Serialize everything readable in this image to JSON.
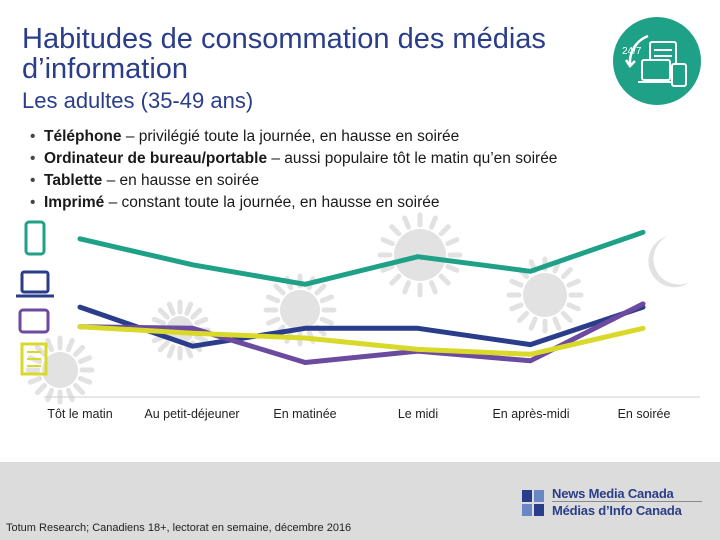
{
  "header": {
    "title": "Habitudes de consommation des médias d’information",
    "subtitle": "Les adultes (35-49 ans)",
    "badge_text": "24/7"
  },
  "bullets": [
    {
      "bold": "Téléphone",
      "rest": " – privilégié toute la journée, en hausse en soirée"
    },
    {
      "bold": "Ordinateur de bureau/portable",
      "rest": " – aussi populaire tôt le matin qu’en soirée"
    },
    {
      "bold": "Tablette",
      "rest": " – en hausse en soirée"
    },
    {
      "bold": "Imprimé",
      "rest": " – constant toute la journée, en hausse en soirée"
    }
  ],
  "chart_data": {
    "type": "line",
    "categories": [
      "Tôt le matin",
      "Au petit-déjeuner",
      "En matinée",
      "Le midi",
      "En après-midi",
      "En soirée"
    ],
    "series": [
      {
        "icon": "phone-icon",
        "color": "#1fa187",
        "values": [
          96,
          80,
          68,
          85,
          76,
          100
        ]
      },
      {
        "icon": "laptop-icon",
        "color": "#2a3d8a",
        "values": [
          54,
          30,
          41,
          41,
          31,
          54
        ]
      },
      {
        "icon": "tablet-icon",
        "color": "#6b4aa0",
        "values": [
          42,
          41,
          20,
          27,
          21,
          56
        ]
      },
      {
        "icon": "print-icon",
        "color": "#d9d92a",
        "values": [
          42,
          38,
          35,
          28,
          25,
          41
        ]
      }
    ],
    "ylim": [
      0,
      110
    ],
    "grid": false,
    "legend": "icons-left"
  },
  "footer": {
    "source": "Totum Research; Canadiens 18+, lectorat en semaine, décembre 2016",
    "logo_line1": "News Media Canada",
    "logo_line2": "Médias d’Info Canada"
  },
  "colors": {
    "title": "#2a3d8a",
    "badge": "#1fa187",
    "sun": "#e2e2e2"
  }
}
